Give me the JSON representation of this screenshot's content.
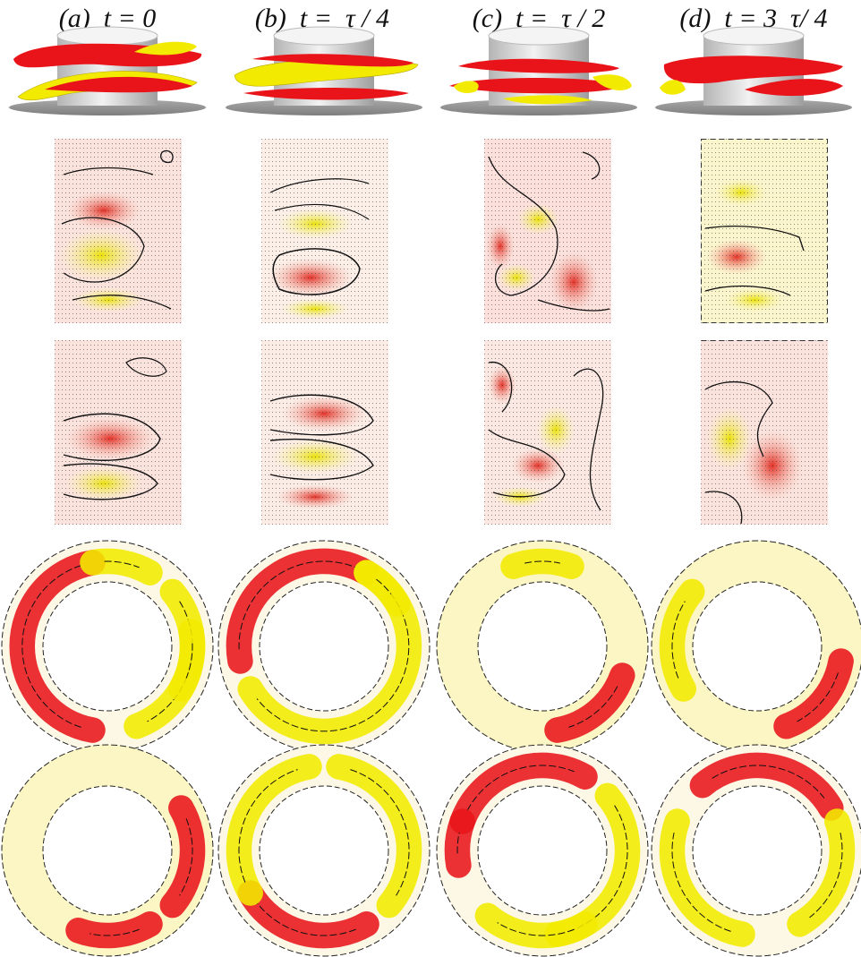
{
  "figure": {
    "columns": [
      {
        "id": "a",
        "label": "(a)  t = 0"
      },
      {
        "id": "b",
        "label": "(b)  t =  τ / 4"
      },
      {
        "id": "c",
        "label": "(c)  t =  τ / 2"
      },
      {
        "id": "d",
        "label": "(d)  t = 3  τ/ 4"
      }
    ],
    "colors": {
      "positive": "#e8141a",
      "negative": "#f2ea00",
      "cylinder": "#d8d8d8",
      "base_plate": "#9a9a9a",
      "contour_line": "#111111",
      "background_tint_warm": "#fbe3dd",
      "background_tint_cool": "#fbf8d0"
    },
    "rows": [
      "isosurface-3d",
      "meridional-section-1",
      "meridional-section-2",
      "annular-section-1",
      "annular-section-2"
    ]
  }
}
